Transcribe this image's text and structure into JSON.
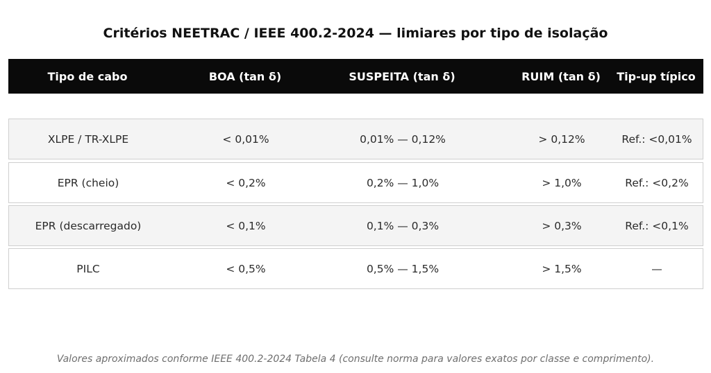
{
  "title": "Critérios NEETRAC / IEEE 400.2-2024 — limiares por tipo de isolação",
  "colors": {
    "header_bg": "#0a0a0a",
    "header_text": "#ffffff",
    "row_alt_bg": "#f4f4f4",
    "row_bg": "#ffffff",
    "row_border": "#cfcfcf"
  },
  "table": {
    "headers": [
      "Tipo de cabo",
      "BOA (tan δ)",
      "SUSPEITA (tan δ)",
      "RUIM (tan δ)",
      "Tip-up típico"
    ],
    "rows": [
      [
        "XLPE / TR-XLPE",
        "< 0,01%",
        "0,01% — 0,12%",
        "> 0,12%",
        "Ref.: <0,01%"
      ],
      [
        "EPR (cheio)",
        "< 0,2%",
        "0,2% — 1,0%",
        "> 1,0%",
        "Ref.: <0,2%"
      ],
      [
        "EPR (descarregado)",
        "< 0,1%",
        "0,1% — 0,3%",
        "> 0,3%",
        "Ref.: <0,1%"
      ],
      [
        "PILC",
        "< 0,5%",
        "0,5% — 1,5%",
        "> 1,5%",
        "—"
      ]
    ]
  },
  "footnote": "Valores aproximados conforme IEEE 400.2-2024 Tabela 4 (consulte norma para valores exatos por classe e comprimento)."
}
